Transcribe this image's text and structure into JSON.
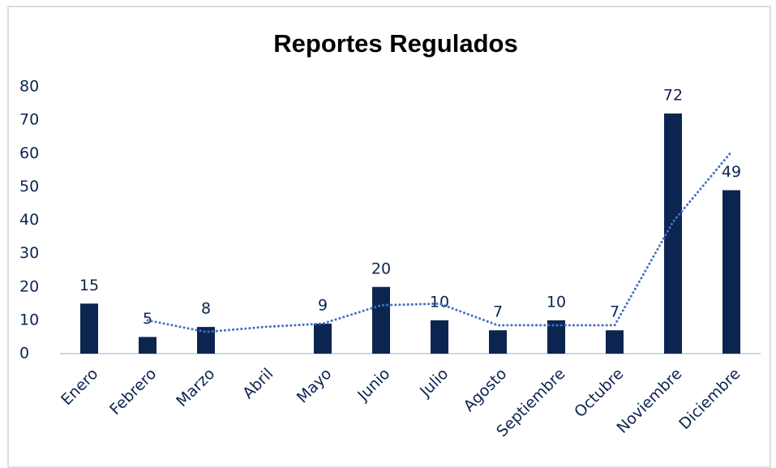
{
  "chart_data": {
    "type": "bar",
    "title": "Reportes Regulados",
    "categories": [
      "Enero",
      "Febrero",
      "Marzo",
      "Abril",
      "Mayo",
      "Junio",
      "Julio",
      "Agosto",
      "Septiembre",
      "Octubre",
      "Noviembre",
      "Diciembre"
    ],
    "values": [
      15,
      5,
      8,
      null,
      9,
      20,
      10,
      7,
      10,
      7,
      72,
      49
    ],
    "color": "#0c2550",
    "trendline": {
      "values": [
        null,
        10,
        6.5,
        8,
        9,
        14.5,
        15,
        8.5,
        8.5,
        8.5,
        39.5,
        60.5
      ],
      "color": "#4472c4",
      "style": "dotted"
    },
    "ylim": [
      0,
      80
    ],
    "yticks": [
      0,
      10,
      20,
      30,
      40,
      50,
      60,
      70,
      80
    ],
    "grid": false
  }
}
